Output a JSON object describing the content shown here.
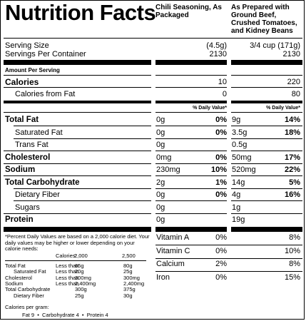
{
  "title": "Nutrition Facts",
  "columns": {
    "col1": "Chili Seasoning, As Packaged",
    "col2": "As Prepared with Ground Beef, Crushed Tomatoes, and Kidney Beans"
  },
  "serving": {
    "size_label": "Serving Size",
    "size_col1": "(4.5g)",
    "size_col2": "3/4 cup (171g)",
    "per_container_label": "Servings Per Container",
    "per_container_col1": "2130",
    "per_container_col2": "2130"
  },
  "amount_per_serving": "Amount Per Serving",
  "calories": {
    "label": "Calories",
    "col1": "10",
    "col2": "220"
  },
  "calories_fat": {
    "label": "Calories from Fat",
    "col1": "0",
    "col2": "80"
  },
  "dv_header": "% Daily Value*",
  "nutrients": [
    {
      "label": "Total Fat",
      "bold": true,
      "amt1": "0g",
      "dv1": "0%",
      "amt2": "9g",
      "dv2": "14%"
    },
    {
      "label": "Saturated Fat",
      "bold": false,
      "amt1": "0g",
      "dv1": "0%",
      "amt2": "3.5g",
      "dv2": "18%"
    },
    {
      "label": "Trans Fat",
      "bold": false,
      "amt1": "0g",
      "dv1": "",
      "amt2": "0.5g",
      "dv2": ""
    },
    {
      "label": "Cholesterol",
      "bold": true,
      "amt1": "0mg",
      "dv1": "0%",
      "amt2": "50mg",
      "dv2": "17%"
    },
    {
      "label": "Sodium",
      "bold": true,
      "amt1": "230mg",
      "dv1": "10%",
      "amt2": "520mg",
      "dv2": "22%"
    },
    {
      "label": "Total Carbohydrate",
      "bold": true,
      "amt1": "2g",
      "dv1": "1%",
      "amt2": "14g",
      "dv2": "5%"
    },
    {
      "label": "Dietary Fiber",
      "bold": false,
      "amt1": "0g",
      "dv1": "0%",
      "amt2": "4g",
      "dv2": "16%"
    },
    {
      "label": "Sugars",
      "bold": false,
      "amt1": "0g",
      "dv1": "",
      "amt2": "1g",
      "dv2": ""
    },
    {
      "label": "Protein",
      "bold": true,
      "amt1": "0g",
      "dv1": "",
      "amt2": "19g",
      "dv2": ""
    }
  ],
  "vitamins": [
    {
      "label": "Vitamin A",
      "dv1": "0%",
      "dv2": "8%"
    },
    {
      "label": "Vitamin C",
      "dv1": "0%",
      "dv2": "10%"
    },
    {
      "label": "Calcium",
      "dv1": "2%",
      "dv2": "8%"
    },
    {
      "label": "Iron",
      "dv1": "0%",
      "dv2": "15%"
    }
  ],
  "footnote": {
    "text": "*Percent Daily Values are based on a 2,000 calorie diet. Your daily values may be higher or lower depending on your calorie needs:",
    "header": [
      "Calories:",
      "2,000",
      "2,500"
    ],
    "rows": [
      [
        "Total Fat",
        "Less than",
        "65g",
        "80g"
      ],
      [
        "Saturated Fat",
        "Less than",
        "20g",
        "25g"
      ],
      [
        "Cholesterol",
        "Less than",
        "300mg",
        "300mg"
      ],
      [
        "Sodium",
        "Less than",
        "2,400mg",
        "2,400mg"
      ],
      [
        "Total Carbohydrate",
        "",
        "300g",
        "375g"
      ],
      [
        "Dietary Fiber",
        "",
        "25g",
        "30g"
      ]
    ],
    "calories_per_gram": "Calories per gram:",
    "per_gram_values": "Fat 9  •  Carbohydrate 4  •  Protein 4"
  }
}
